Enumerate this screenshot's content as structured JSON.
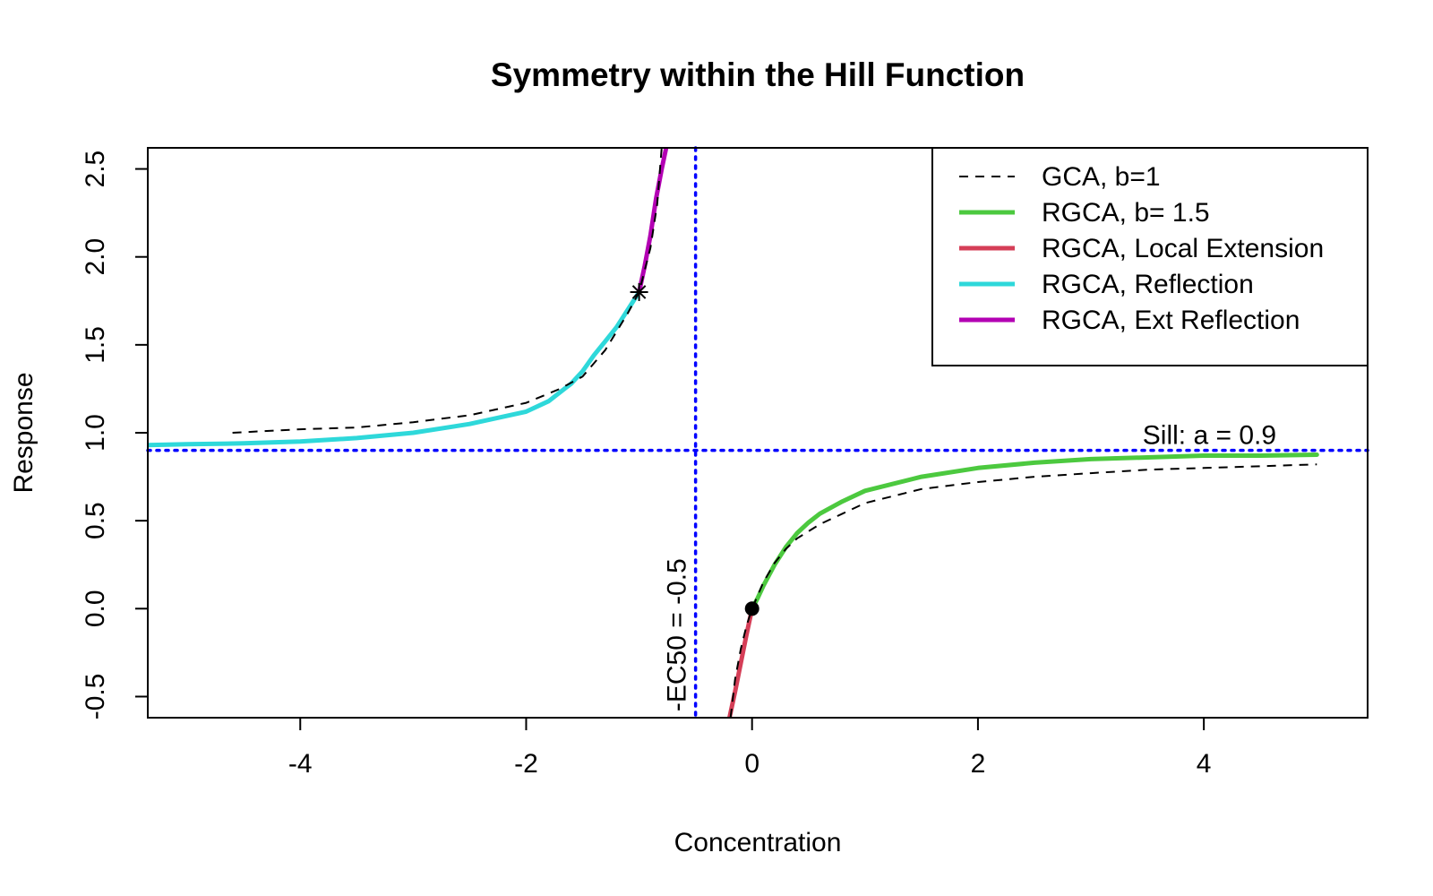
{
  "chart_data": {
    "type": "line",
    "title": "Symmetry within the Hill Function",
    "xlabel": "Concentration",
    "ylabel": "Response",
    "xlim": [
      -5.35,
      5.45
    ],
    "ylim": [
      -0.62,
      2.62
    ],
    "x_ticks": [
      -4,
      -2,
      0,
      2,
      4
    ],
    "x_tick_labels": [
      "-4",
      "-2",
      "0",
      "2",
      "4"
    ],
    "y_ticks": [
      -0.5,
      0.0,
      0.5,
      1.0,
      1.5,
      2.0,
      2.5
    ],
    "y_tick_labels": [
      "-0.5",
      "0.0",
      "0.5",
      "1.0",
      "1.5",
      "2.0",
      "2.5"
    ],
    "grid": false,
    "legend_position": "top-right",
    "parameters": {
      "sill_a": 0.9,
      "ec50": 0.5,
      "b_gca": 1,
      "b_rgca": 1.5
    },
    "series": [
      {
        "name": "GCA, b=1",
        "color": "#000000",
        "style": "dashed",
        "points": [
          [
            -4.6,
            1.0
          ],
          [
            -4.0,
            1.02
          ],
          [
            -3.5,
            1.03
          ],
          [
            -3.0,
            1.06
          ],
          [
            -2.5,
            1.1
          ],
          [
            -2.0,
            1.17
          ],
          [
            -1.7,
            1.25
          ],
          [
            -1.5,
            1.32
          ],
          [
            -1.3,
            1.47
          ],
          [
            -1.1,
            1.68
          ],
          [
            -1.0,
            1.8
          ],
          [
            -0.9,
            2.05
          ],
          [
            -0.84,
            2.3
          ],
          [
            -0.8,
            2.62
          ],
          null,
          [
            -0.19,
            -0.62
          ],
          [
            -0.15,
            -0.4
          ],
          [
            -0.1,
            -0.23
          ],
          [
            -0.05,
            -0.1
          ],
          [
            0.0,
            0.0
          ],
          [
            0.1,
            0.15
          ],
          [
            0.2,
            0.26
          ],
          [
            0.3,
            0.34
          ],
          [
            0.4,
            0.4
          ],
          [
            0.6,
            0.48
          ],
          [
            0.8,
            0.54
          ],
          [
            1.0,
            0.6
          ],
          [
            1.5,
            0.68
          ],
          [
            2.0,
            0.72
          ],
          [
            2.5,
            0.75
          ],
          [
            3.0,
            0.77
          ],
          [
            3.5,
            0.79
          ],
          [
            4.0,
            0.8
          ],
          [
            4.5,
            0.81
          ],
          [
            5.0,
            0.82
          ]
        ]
      },
      {
        "name": "RGCA, b= 1.5",
        "color": "#4cc93f",
        "style": "solid",
        "points": [
          [
            0.0,
            0.0
          ],
          [
            0.05,
            0.06
          ],
          [
            0.1,
            0.13
          ],
          [
            0.2,
            0.25
          ],
          [
            0.3,
            0.35
          ],
          [
            0.4,
            0.43
          ],
          [
            0.5,
            0.49
          ],
          [
            0.6,
            0.54
          ],
          [
            0.8,
            0.61
          ],
          [
            1.0,
            0.67
          ],
          [
            1.5,
            0.75
          ],
          [
            2.0,
            0.8
          ],
          [
            2.5,
            0.83
          ],
          [
            3.0,
            0.85
          ],
          [
            3.5,
            0.86
          ],
          [
            4.0,
            0.87
          ],
          [
            4.5,
            0.87
          ],
          [
            5.0,
            0.875
          ]
        ]
      },
      {
        "name": "RGCA, Local Extension",
        "color": "#d53e57",
        "style": "solid",
        "points": [
          [
            -0.2,
            -0.62
          ],
          [
            -0.15,
            -0.47
          ],
          [
            -0.1,
            -0.31
          ],
          [
            -0.05,
            -0.15
          ],
          [
            0.0,
            0.0
          ]
        ]
      },
      {
        "name": "RGCA, Reflection",
        "color": "#2ed8da",
        "style": "solid",
        "points": [
          [
            -5.35,
            0.93
          ],
          [
            -5.0,
            0.935
          ],
          [
            -4.5,
            0.94
          ],
          [
            -4.0,
            0.95
          ],
          [
            -3.5,
            0.97
          ],
          [
            -3.0,
            1.0
          ],
          [
            -2.5,
            1.05
          ],
          [
            -2.0,
            1.12
          ],
          [
            -1.8,
            1.18
          ],
          [
            -1.6,
            1.28
          ],
          [
            -1.5,
            1.35
          ],
          [
            -1.4,
            1.44
          ],
          [
            -1.3,
            1.52
          ],
          [
            -1.2,
            1.6
          ],
          [
            -1.1,
            1.7
          ],
          [
            -1.0,
            1.8
          ]
        ]
      },
      {
        "name": "RGCA, Ext Reflection",
        "color": "#b300b3",
        "style": "solid",
        "points": [
          [
            -1.0,
            1.8
          ],
          [
            -0.95,
            1.95
          ],
          [
            -0.9,
            2.12
          ],
          [
            -0.85,
            2.33
          ],
          [
            -0.8,
            2.5
          ],
          [
            -0.76,
            2.62
          ]
        ]
      }
    ],
    "reference_lines": [
      {
        "orientation": "horizontal",
        "value": 0.9,
        "label": "Sill: a =  0.9",
        "color": "#0000ff",
        "style": "dotted"
      },
      {
        "orientation": "vertical",
        "value": -0.5,
        "label": "-EC50 =  -0.5",
        "color": "#0000ff",
        "style": "dotted"
      }
    ],
    "markers": [
      {
        "name": "reflection-point",
        "x": -1.0,
        "y": 1.8,
        "symbol": "asterisk"
      },
      {
        "name": "origin-point",
        "x": 0.0,
        "y": 0.0,
        "symbol": "filled-circle"
      }
    ]
  }
}
